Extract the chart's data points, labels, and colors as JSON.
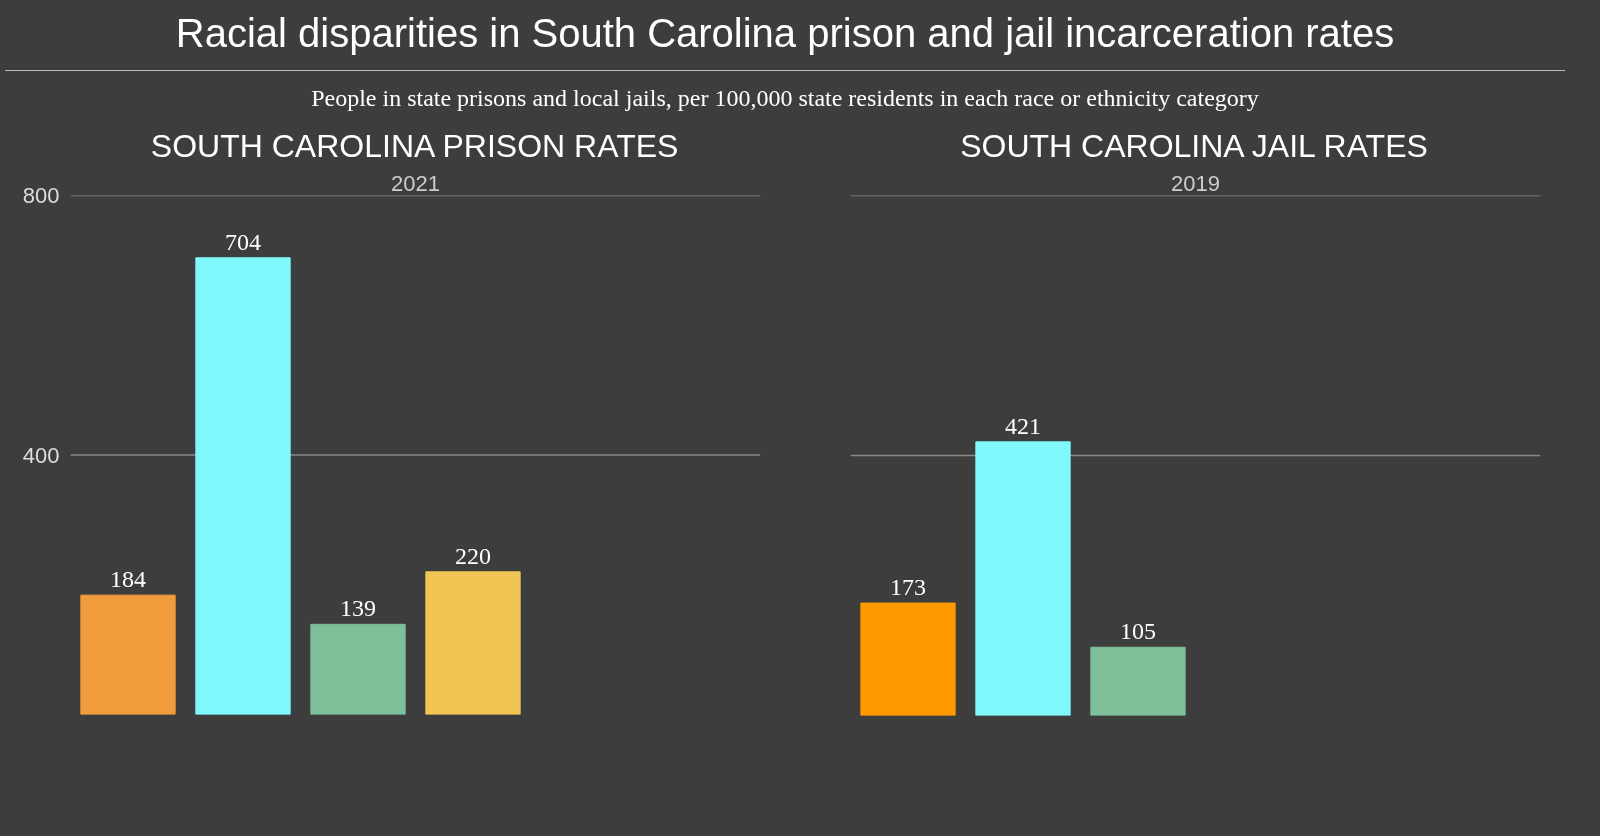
{
  "chart_data": [
    {
      "type": "bar",
      "title": "SOUTH CAROLINA PRISON RATES",
      "subtitle": "2021",
      "categories": [
        null,
        null,
        null,
        null
      ],
      "values": [
        184,
        704,
        139,
        220
      ],
      "colors": [
        "#f09c3c",
        "#80f8fc",
        "#7fbf9a",
        "#f0c554"
      ],
      "ylim": [
        0,
        800
      ],
      "yticks": [
        400,
        800
      ],
      "grid": "y",
      "data_labels": true,
      "annotations": [
        "Racial disparities in South Carolina prison and jail incarceration rates",
        "People in state prisons and local jails, per 100,000 state residents in each race or ethnicity category"
      ]
    },
    {
      "type": "bar",
      "title": "SOUTH CAROLINA JAIL RATES",
      "subtitle": "2019",
      "categories": [
        null,
        null,
        null
      ],
      "values": [
        173,
        421,
        105
      ],
      "colors": [
        "#ff9900",
        "#80f8fc",
        "#7fbf9a"
      ],
      "ylim": [
        0,
        800
      ],
      "yticks": [
        400,
        800
      ],
      "grid": "y",
      "data_labels": true,
      "tick_labels": false
    }
  ]
}
